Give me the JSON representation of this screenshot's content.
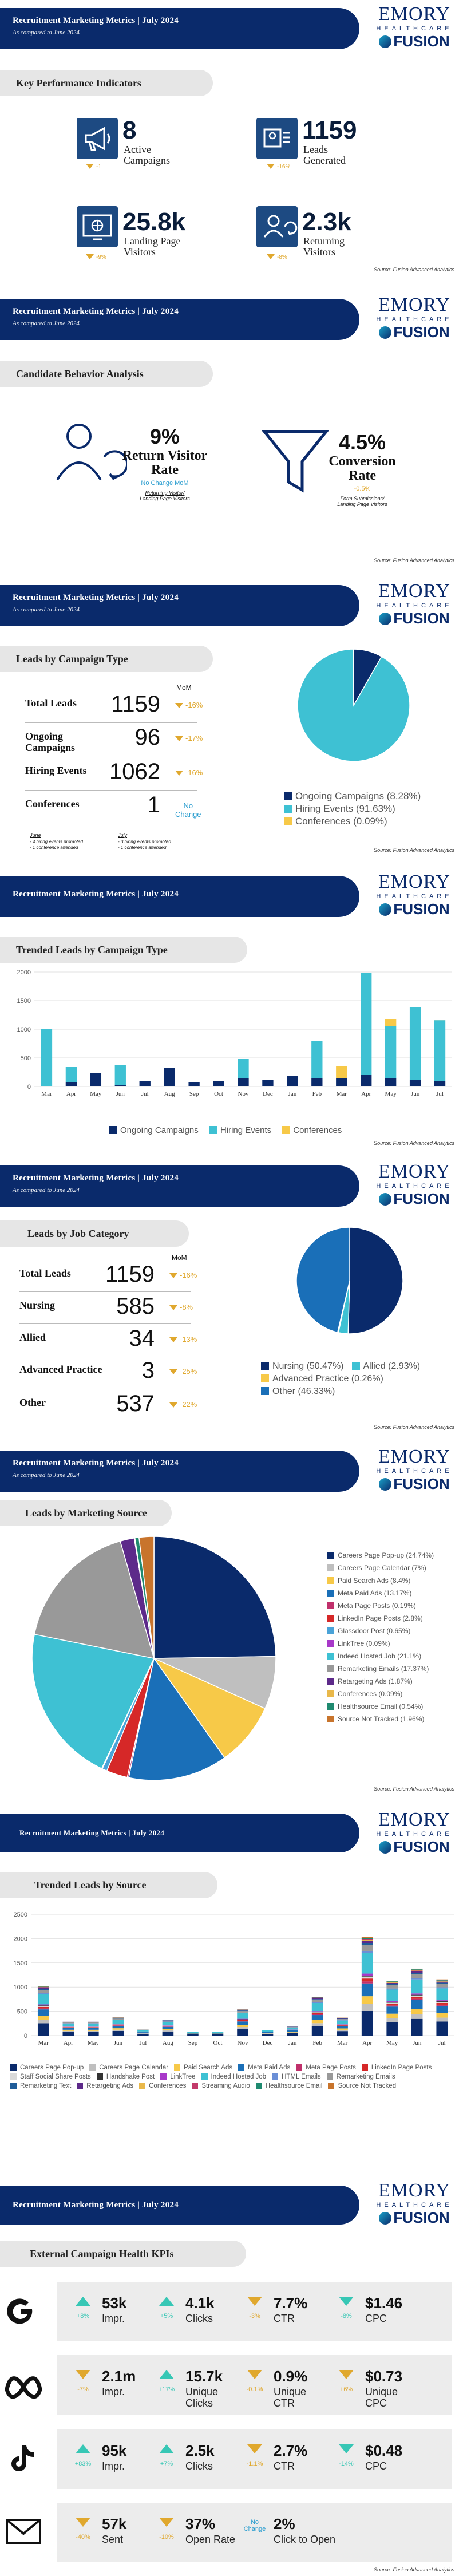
{
  "header": {
    "title": "Recruitment Marketing Metrics  |  July  2024",
    "subtitle": "As compared to June 2024",
    "logo_emory": "EMORY",
    "logo_healthcare": "HEALTHCARE",
    "logo_fusion": "FUSION"
  },
  "source": "Source: Fusion Advanced Analytics",
  "kpi": {
    "title": "Key Performance Indicators",
    "items": [
      {
        "value": "8",
        "label": "Active\nCampaigns",
        "change": "-1",
        "icon": "megaphone-icon"
      },
      {
        "value": "1159",
        "label": "Leads\nGenerated",
        "change": "-16%",
        "icon": "leads-icon"
      },
      {
        "value": "25.8k",
        "label": "Landing Page\nVisitors",
        "change": "-9%",
        "icon": "landing-page-icon"
      },
      {
        "value": "2.3k",
        "label": "Returning\nVisitors",
        "change": "-8%",
        "icon": "returning-visitor-icon"
      }
    ]
  },
  "behavior": {
    "title": "Candidate Behavior Analysis",
    "return_rate": {
      "value": "9%",
      "label": "Return Visitor\nRate",
      "change": "No Change MoM",
      "formula_top": "Returning Visitor/",
      "formula_bottom": "Landing Page Visitors"
    },
    "conversion_rate": {
      "value": "4.5%",
      "label": "Conversion\nRate",
      "change": "-0.5%",
      "formula_top": "Form Submissions/",
      "formula_bottom": "Landing Page Visitors"
    }
  },
  "campaign_type": {
    "title": "Leads by Campaign Type",
    "mom_label": "MoM",
    "rows": [
      {
        "label": "Total Leads",
        "value": "1159",
        "change": "-16%"
      },
      {
        "label": "Ongoing\nCampaigns",
        "value": "96",
        "change": "-17%"
      },
      {
        "label": "Hiring Events",
        "value": "1062",
        "change": "-16%"
      },
      {
        "label": "Conferences",
        "value": "1",
        "change": "No\nChange"
      }
    ],
    "notes": [
      {
        "month": "June",
        "lines": [
          "- 4 hiring events promoted",
          "- 1 conference attended"
        ]
      },
      {
        "month": "July",
        "lines": [
          "- 3 hiring events promoted",
          "- 1 conference attended"
        ]
      }
    ],
    "legend": [
      "Ongoing Campaigns (8.28%)",
      "Hiring Events (91.63%)",
      "Conferences (0.09%)"
    ]
  },
  "job_category": {
    "title": "Leads by Job Category",
    "mom_label": "MoM",
    "rows": [
      {
        "label": "Total Leads",
        "value": "1159",
        "change": "-16%"
      },
      {
        "label": "Nursing",
        "value": "585",
        "change": "-8%"
      },
      {
        "label": "Allied",
        "value": "34",
        "change": "-13%"
      },
      {
        "label": "Advanced Practice",
        "value": "3",
        "change": "-25%"
      },
      {
        "label": "Other",
        "value": "537",
        "change": "-22%"
      }
    ],
    "legend": [
      "Nursing (50.47%)",
      "Allied (2.93%)",
      "Advanced Practice (0.26%)",
      "Other (46.33%)"
    ]
  },
  "marketing_source": {
    "title": "Leads by Marketing Source"
  },
  "trended_campaign": {
    "title": "Trended Leads by Campaign Type"
  },
  "trended_source": {
    "title": "Trended Leads by Source"
  },
  "external": {
    "title": "External Campaign Health KPIs",
    "rows": [
      {
        "platform": "google-icon",
        "cells": [
          {
            "dir": "up",
            "chg": "+8%",
            "val": "53k",
            "lbl": "Impr."
          },
          {
            "dir": "up",
            "chg": "+5%",
            "val": "4.1k",
            "lbl": "Clicks"
          },
          {
            "dir": "down",
            "chg": "-3%",
            "val": "7.7%",
            "lbl": "CTR"
          },
          {
            "dir": "tealdown",
            "chg": "-8%",
            "val": "$1.46",
            "lbl": "CPC"
          }
        ]
      },
      {
        "platform": "meta-icon",
        "cells": [
          {
            "dir": "down",
            "chg": "-7%",
            "val": "2.1m",
            "lbl": "Impr."
          },
          {
            "dir": "up",
            "chg": "+17%",
            "val": "15.7k",
            "lbl": "Unique\nClicks"
          },
          {
            "dir": "down",
            "chg": "-0.1%",
            "val": "0.9%",
            "lbl": "Unique\nCTR"
          },
          {
            "dir": "down",
            "chg": "+6%",
            "val": "$0.73",
            "lbl": "Unique\nCPC"
          }
        ]
      },
      {
        "platform": "tiktok-icon",
        "cells": [
          {
            "dir": "up",
            "chg": "+83%",
            "val": "95k",
            "lbl": "Impr."
          },
          {
            "dir": "up",
            "chg": "+7%",
            "val": "2.5k",
            "lbl": "Clicks"
          },
          {
            "dir": "down",
            "chg": "-1.1%",
            "val": "2.7%",
            "lbl": "CTR"
          },
          {
            "dir": "tealdown",
            "chg": "-14%",
            "val": "$0.48",
            "lbl": "CPC"
          }
        ]
      },
      {
        "platform": "email-icon",
        "cells": [
          {
            "dir": "down",
            "chg": "-40%",
            "val": "57k",
            "lbl": "Sent"
          },
          {
            "dir": "down",
            "chg": "-10%",
            "val": "37%",
            "lbl": "Open Rate"
          },
          {
            "dir": "none",
            "chg": "No\nChange",
            "val": "2%",
            "lbl": "Click to Open"
          }
        ]
      }
    ]
  },
  "chart_data": [
    {
      "type": "pie",
      "categories": [
        "Ongoing Campaigns",
        "Hiring Events",
        "Conferences"
      ],
      "values": [
        8.28,
        91.63,
        0.09
      ],
      "colors": [
        "#0a2a6b",
        "#3ec1d3",
        "#f7c948"
      ]
    },
    {
      "type": "bar",
      "title": "Trended Leads by Campaign Type",
      "categories": [
        "Mar",
        "Apr",
        "May",
        "Jun",
        "Jul",
        "Aug",
        "Sep",
        "Oct",
        "Nov",
        "Dec",
        "Jan",
        "Feb",
        "Mar",
        "Apr",
        "May",
        "Jun",
        "Jul"
      ],
      "series": [
        {
          "name": "Ongoing Campaigns",
          "values": [
            0,
            80,
            230,
            20,
            90,
            320,
            80,
            90,
            150,
            120,
            180,
            140,
            150,
            200,
            150,
            120,
            96
          ]
        },
        {
          "name": "Hiring Events",
          "values": [
            1000,
            260,
            0,
            360,
            0,
            0,
            0,
            0,
            330,
            0,
            0,
            650,
            0,
            1790,
            900,
            1270,
            1062
          ]
        },
        {
          "name": "Conferences",
          "values": [
            0,
            0,
            0,
            0,
            0,
            0,
            0,
            0,
            0,
            0,
            0,
            0,
            200,
            0,
            130,
            0,
            1
          ]
        }
      ],
      "ylim": [
        0,
        2000
      ],
      "yticks": [
        "0",
        "500",
        "1000",
        "1500",
        "2000"
      ],
      "legend": [
        "Ongoing Campaigns",
        "Hiring Events",
        "Conferences"
      ],
      "colors": [
        "#0a2a6b",
        "#3ec1d3",
        "#f7c948"
      ]
    },
    {
      "type": "pie",
      "categories": [
        "Nursing",
        "Allied",
        "Advanced Practice",
        "Other"
      ],
      "values": [
        50.47,
        2.93,
        0.26,
        46.33
      ],
      "colors": [
        "#0a2a6b",
        "#3ec1d3",
        "#f7c948",
        "#1a6fb8"
      ]
    },
    {
      "type": "pie",
      "categories": [
        "Careers Page Pop-up",
        "Careers Page Calendar",
        "Paid Search Ads",
        "Meta Paid Ads",
        "Meta Page Posts",
        "LinkedIn Page Posts",
        "Glassdoor Post",
        "LinkTree",
        "Indeed Hosted Job",
        "Remarketing Emails",
        "Retargeting Ads",
        "Conferences",
        "Healthsource Email",
        "Source Not Tracked"
      ],
      "values": [
        24.74,
        7,
        8.4,
        13.17,
        0.19,
        2.8,
        0.65,
        0.09,
        21.1,
        17.37,
        1.87,
        0.09,
        0.54,
        1.96
      ],
      "legend": [
        "Careers Page Pop-up (24.74%)",
        "Careers Page Calendar (7%)",
        "Paid Search Ads (8.4%)",
        "Meta Paid Ads (13.17%)",
        "Meta Page Posts (0.19%)",
        "LinkedIn Page Posts (2.8%)",
        "Glassdoor Post (0.65%)",
        "LinkTree (0.09%)",
        "Indeed Hosted Job (21.1%)",
        "Remarketing Emails (17.37%)",
        "Retargeting Ads (1.87%)",
        "Conferences (0.09%)",
        "Healthsource Email (0.54%)",
        "Source Not Tracked (1.96%)"
      ],
      "colors": [
        "#0a2a6b",
        "#bfbfbf",
        "#f7c948",
        "#1a6fb8",
        "#c0306b",
        "#d62828",
        "#4aa3d8",
        "#a838c9",
        "#3ec1d3",
        "#999999",
        "#5d2a8a",
        "#e9b84a",
        "#1f8a70",
        "#c8742c"
      ]
    },
    {
      "type": "bar",
      "title": "Trended Leads by Source",
      "categories": [
        "Mar",
        "Apr",
        "May",
        "Jun",
        "Jul",
        "Aug",
        "Sep",
        "Oct",
        "Nov",
        "Dec",
        "Jan",
        "Feb",
        "Mar",
        "Apr",
        "May",
        "Jun",
        "Jul"
      ],
      "ylim": [
        0,
        2500
      ],
      "yticks": [
        "0",
        "500",
        "1000",
        "1500",
        "2000",
        "2500"
      ],
      "totals": [
        1020,
        300,
        300,
        380,
        150,
        340,
        100,
        100,
        550,
        140,
        200,
        800,
        370,
        2030,
        1130,
        1380,
        1159
      ],
      "legend": [
        "Careers Page Pop-up",
        "Careers Page Calendar",
        "Paid Search Ads",
        "Meta Paid Ads",
        "Meta Page Posts",
        "LinkedIn Page Posts",
        "Staff Social Share Posts",
        "Handshake Post",
        "LinkTree",
        "Indeed Hosted Job",
        "HTML Emails",
        "Remarketing Emails",
        "Remarketing Text",
        "Retargeting Ads",
        "Conferences",
        "Streaming Audio",
        "Healthsource Email",
        "Source Not Tracked"
      ],
      "colors": [
        "#0a2a6b",
        "#bfbfbf",
        "#f7c948",
        "#1a6fb8",
        "#c0306b",
        "#d62828",
        "#d9d9d9",
        "#333333",
        "#a838c9",
        "#3ec1d3",
        "#6b8fd6",
        "#999999",
        "#1f5c99",
        "#5d2a8a",
        "#e9b84a",
        "#c23a6a",
        "#1f8a70",
        "#c8742c"
      ]
    }
  ]
}
